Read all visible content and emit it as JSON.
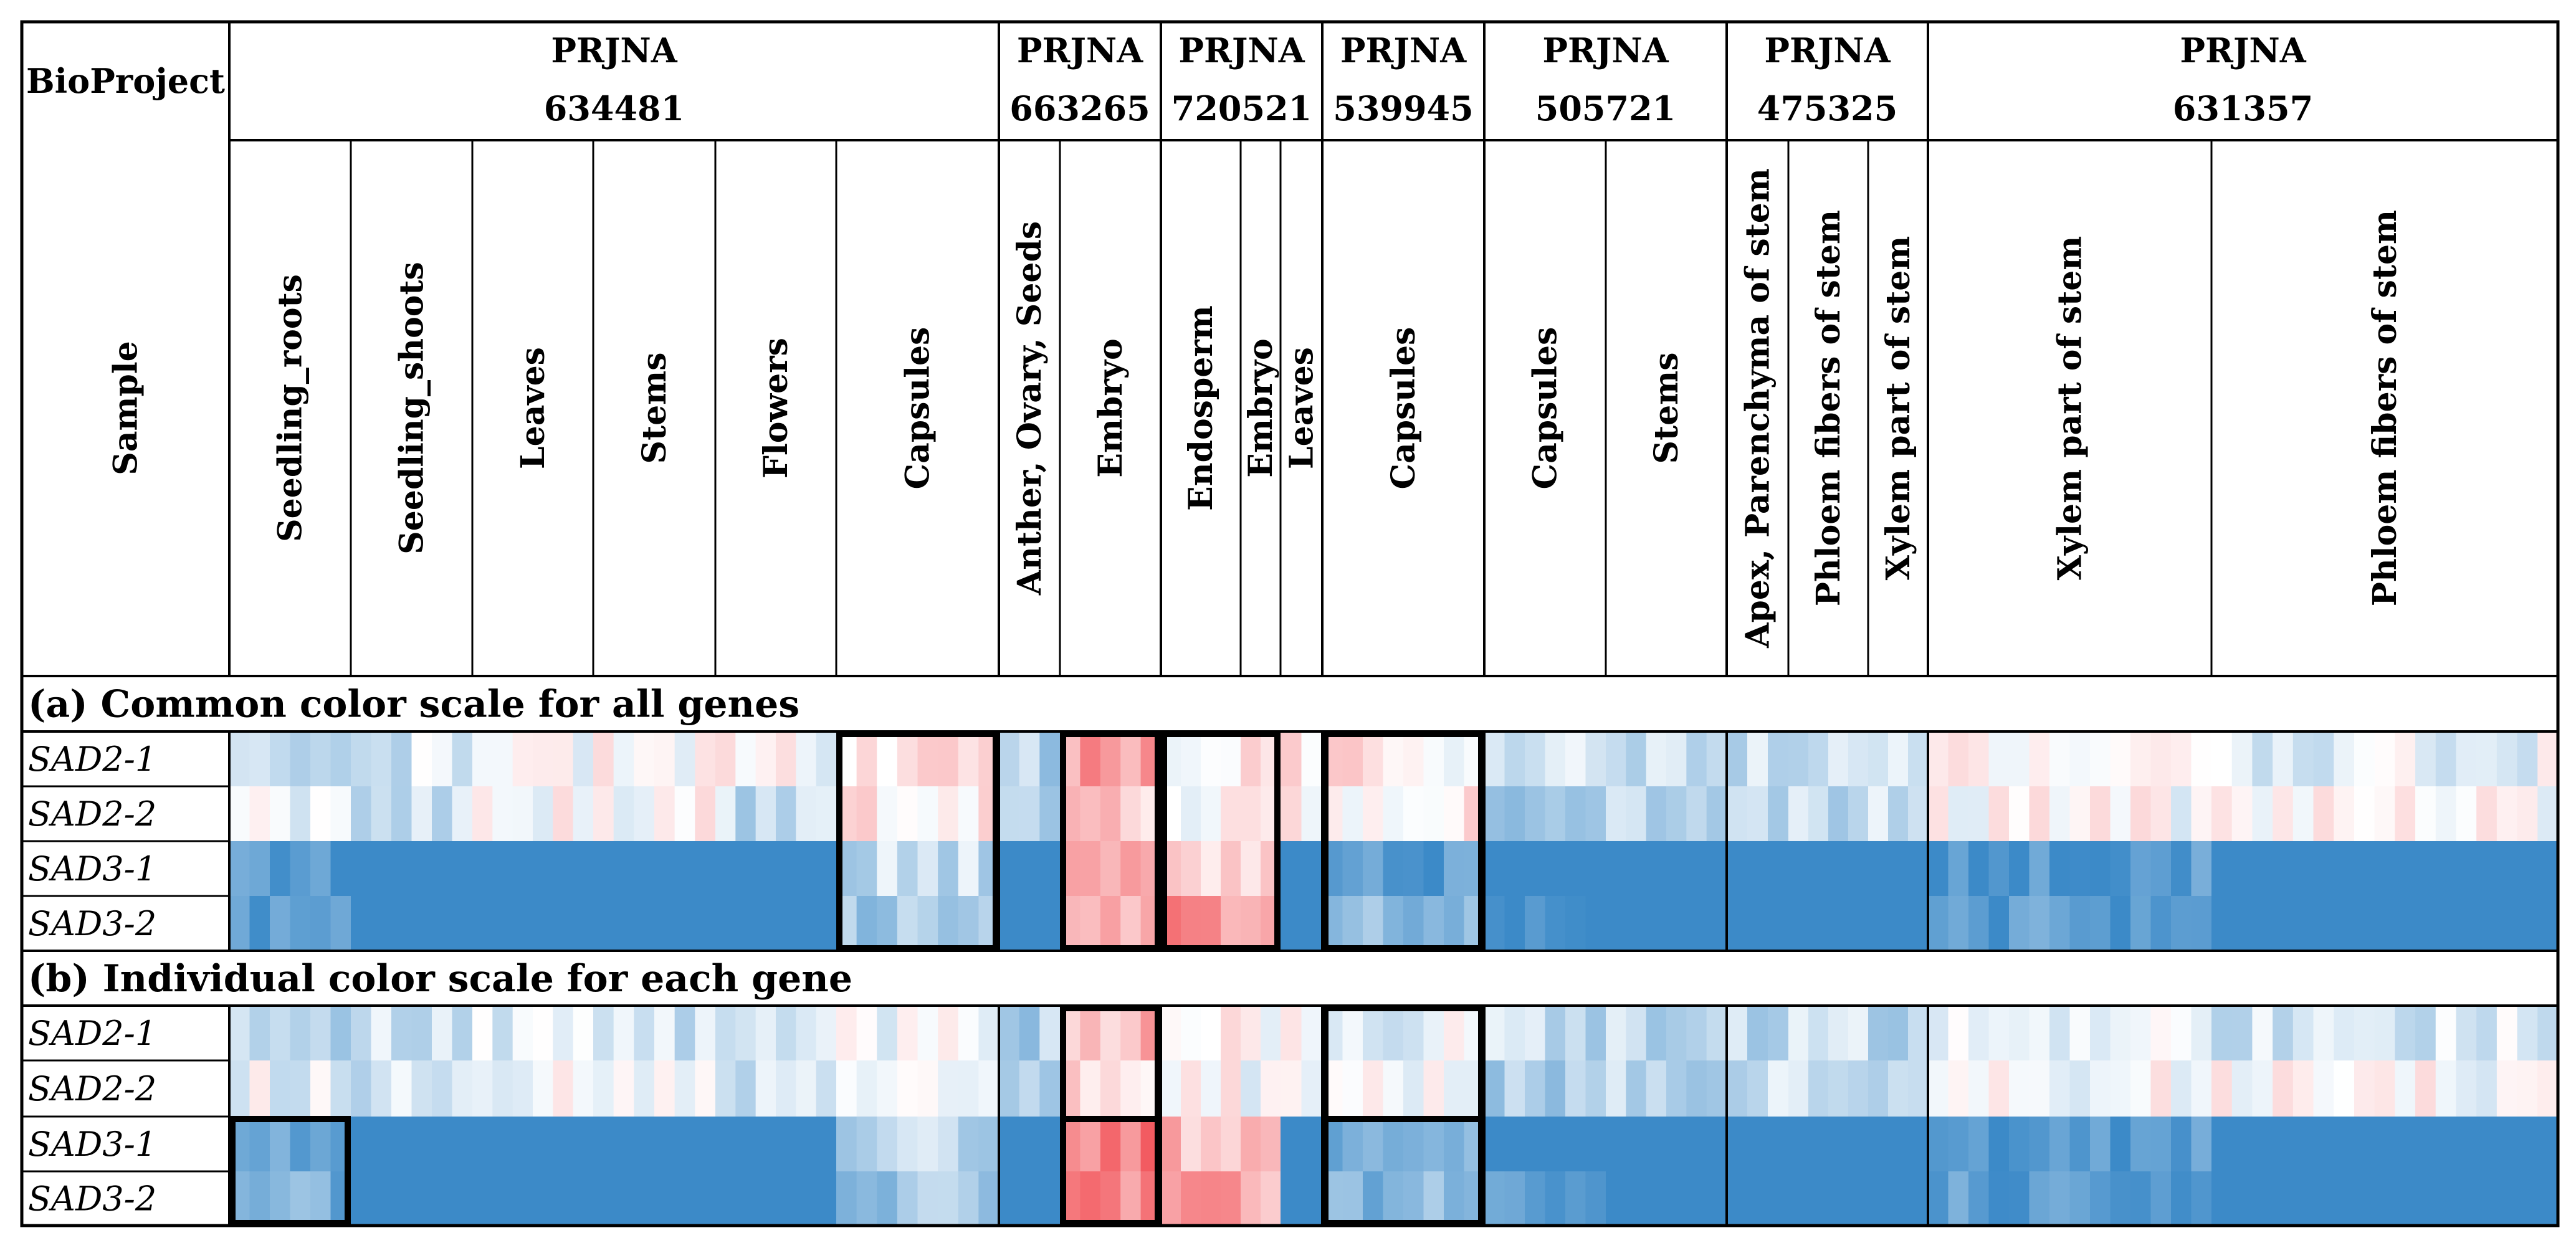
{
  "chart_data": {
    "type": "heatmap",
    "header_row_label": "BioProject",
    "sample_row_label": "Sample",
    "bioprojects": [
      {
        "line1": "PRJNA",
        "line2": "634481"
      },
      {
        "line1": "PRJNA",
        "line2": "663265"
      },
      {
        "line1": "PRJNA",
        "line2": "720521"
      },
      {
        "line1": "PRJNA",
        "line2": "539945"
      },
      {
        "line1": "PRJNA",
        "line2": "505721"
      },
      {
        "line1": "PRJNA",
        "line2": "475325"
      },
      {
        "line1": "PRJNA",
        "line2": "631357"
      }
    ],
    "samples": [
      {
        "label": "Seedling_roots",
        "project": 0
      },
      {
        "label": "Seedling_shoots",
        "project": 0
      },
      {
        "label": "Leaves",
        "project": 0
      },
      {
        "label": "Stems",
        "project": 0
      },
      {
        "label": "Flowers",
        "project": 0
      },
      {
        "label": "Capsules",
        "project": 0
      },
      {
        "label": "Anther, Ovary, Seeds",
        "project": 1
      },
      {
        "label": "Embryo",
        "project": 1
      },
      {
        "label": "Endosperm",
        "project": 2
      },
      {
        "label": "Embryo",
        "project": 2
      },
      {
        "label": "Leaves",
        "project": 2
      },
      {
        "label": "Capsules",
        "project": 3
      },
      {
        "label": "Capsules",
        "project": 4
      },
      {
        "label": "Stems",
        "project": 4
      },
      {
        "label": "Apex, Parenchyma of stem",
        "project": 5
      },
      {
        "label": "Phloem fibers of stem",
        "project": 5
      },
      {
        "label": "Xylem part of stem",
        "project": 5
      },
      {
        "label": "Xylem part of stem",
        "project": 6
      },
      {
        "label": "Phloem fibers of stem",
        "project": 6
      }
    ],
    "sections": [
      {
        "title": "(a) Common color scale for all genes",
        "genes": [
          "SAD2-1",
          "SAD2-2",
          "SAD3-1",
          "SAD3-2"
        ],
        "levels": [
          [
            -0.2,
            -0.2,
            0.0,
            0.0,
            0.0,
            0.1,
            -0.4,
            0.5,
            0.1,
            0.1,
            0.1,
            0.1,
            -0.2,
            -0.3,
            -0.3,
            -0.3,
            -0.3,
            0.0,
            -0.1
          ],
          [
            -0.1,
            -0.2,
            0.0,
            0.0,
            -0.3,
            0.1,
            -0.3,
            0.3,
            0.0,
            0.0,
            0.1,
            0.1,
            -0.4,
            -0.3,
            -0.3,
            -0.3,
            -0.3,
            0.0,
            0.0
          ],
          [
            -0.9,
            -1.0,
            -1.0,
            -1.0,
            -1.0,
            -0.3,
            -1.0,
            0.6,
            0.3,
            0.2,
            -1.0,
            -0.8,
            -1.0,
            -1.0,
            -1.0,
            -1.0,
            -1.0,
            -0.9,
            -1.0
          ],
          [
            -0.8,
            -1.0,
            -1.0,
            -1.0,
            -1.0,
            -0.5,
            -1.0,
            0.5,
            0.6,
            0.4,
            -1.0,
            -0.6,
            -0.9,
            -1.0,
            -1.0,
            -1.0,
            -1.0,
            -0.8,
            -1.0
          ]
        ],
        "highlight_boxes": [
          {
            "from_sample": 5,
            "to_sample": 5,
            "from_gene": 0,
            "to_gene": 3
          },
          {
            "from_sample": 7,
            "to_sample": 7,
            "from_gene": 0,
            "to_gene": 3
          },
          {
            "from_sample": 8,
            "to_sample": 9,
            "from_gene": 0,
            "to_gene": 3
          },
          {
            "from_sample": 11,
            "to_sample": 11,
            "from_gene": 0,
            "to_gene": 3
          }
        ]
      },
      {
        "title": "(b) Individual color scale for each gene",
        "genes": [
          "SAD2-1",
          "SAD2-2",
          "SAD3-1",
          "SAD3-2"
        ],
        "levels": [
          [
            -0.3,
            -0.3,
            -0.2,
            -0.2,
            -0.3,
            -0.1,
            -0.4,
            0.4,
            0.0,
            0.0,
            0.0,
            -0.1,
            -0.3,
            -0.3,
            -0.3,
            -0.3,
            -0.3,
            -0.1,
            -0.2
          ],
          [
            -0.1,
            -0.2,
            0.0,
            0.0,
            -0.3,
            0.0,
            -0.3,
            0.2,
            0.0,
            0.0,
            0.0,
            0.0,
            -0.4,
            -0.3,
            -0.3,
            -0.3,
            -0.3,
            0.0,
            0.0
          ],
          [
            -0.8,
            -1.0,
            -1.0,
            -1.0,
            -1.0,
            -0.3,
            -1.0,
            0.7,
            0.4,
            0.3,
            -1.0,
            -0.7,
            -1.0,
            -1.0,
            -1.0,
            -1.0,
            -1.0,
            -0.8,
            -1.0
          ],
          [
            -0.7,
            -1.0,
            -1.0,
            -1.0,
            -1.0,
            -0.5,
            -1.0,
            0.6,
            0.6,
            0.5,
            -1.0,
            -0.6,
            -0.9,
            -1.0,
            -1.0,
            -1.0,
            -1.0,
            -0.8,
            -1.0
          ]
        ],
        "highlight_boxes": [
          {
            "from_sample": 7,
            "to_sample": 7,
            "from_gene": 0,
            "to_gene": 3
          },
          {
            "from_sample": 11,
            "to_sample": 11,
            "from_gene": 0,
            "to_gene": 3
          },
          {
            "from_sample": 0,
            "to_sample": 0,
            "from_gene": 2,
            "to_gene": 3
          },
          {
            "from_sample": 7,
            "to_sample": 7,
            "from_gene": 2,
            "to_gene": 3
          },
          {
            "from_sample": 11,
            "to_sample": 11,
            "from_gene": 2,
            "to_gene": 3
          }
        ]
      }
    ],
    "color_scale": {
      "low": "#3c8ac8",
      "mid": "#ffffff",
      "high": "#f1494f"
    }
  }
}
